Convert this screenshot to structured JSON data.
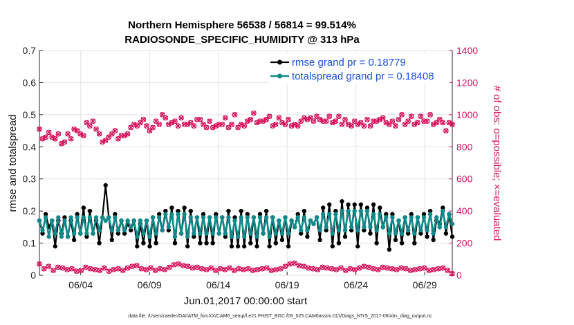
{
  "chart_data": {
    "type": "line",
    "title_line1": "Northern Hemisphere 56538 / 56814 = 99.514%",
    "title_line2": "RADIOSONDE_SPECIFIC_HUMIDITY @ 313 hPa",
    "xlabel": "Jun.01,2017 00:00:00 start",
    "ylabel": "rmse and totalspread",
    "y2label": "# of obs: o=possible; ×=evaluated",
    "footer": "data file: /Users/raeder/DAI/ATM_forcXX/CAM6_setup/f.e21.FHIST_BGC.f09_025.CAM6assim.011/Diags_NTrS_2017-06/obs_diag_output.nc",
    "xlim": [
      1.0,
      31.0
    ],
    "ylim": [
      0,
      0.7
    ],
    "y2lim": [
      0,
      1400
    ],
    "x_ticks": [
      4,
      9,
      14,
      19,
      24,
      29
    ],
    "x_tick_labels": [
      "06/04",
      "06/09",
      "06/14",
      "06/19",
      "06/24",
      "06/29"
    ],
    "y_ticks": [
      0,
      0.1,
      0.2,
      0.3,
      0.4,
      0.5,
      0.6,
      0.7
    ],
    "y_tick_labels": [
      "0",
      "0.1",
      "0.2",
      "0.3",
      "0.4",
      "0.5",
      "0.6",
      "0.7"
    ],
    "y2_ticks": [
      0,
      200,
      400,
      600,
      800,
      1000,
      1200,
      1400
    ],
    "y2_tick_labels": [
      "0",
      "200",
      "400",
      "600",
      "800",
      "1000",
      "1200",
      "1400"
    ],
    "colors": {
      "rmse": "#000000",
      "spread": "#0e8a8a",
      "obs": "#d6135c",
      "legend_text": "#1a4fe0"
    },
    "series": [
      {
        "name": "rmse grand pr = 0.18779",
        "axis": "left",
        "values": [
          0.17,
          0.13,
          0.19,
          0.15,
          0.17,
          0.09,
          0.17,
          0.13,
          0.18,
          0.12,
          0.17,
          0.11,
          0.19,
          0.13,
          0.21,
          0.12,
          0.2,
          0.13,
          0.17,
          0.1,
          0.18,
          0.28,
          0.18,
          0.11,
          0.19,
          0.13,
          0.17,
          0.13,
          0.16,
          0.14,
          0.17,
          0.09,
          0.16,
          0.1,
          0.17,
          0.09,
          0.18,
          0.1,
          0.19,
          0.14,
          0.2,
          0.14,
          0.21,
          0.1,
          0.2,
          0.13,
          0.21,
          0.09,
          0.2,
          0.12,
          0.18,
          0.1,
          0.19,
          0.1,
          0.18,
          0.1,
          0.19,
          0.13,
          0.18,
          0.12,
          0.2,
          0.09,
          0.18,
          0.09,
          0.2,
          0.09,
          0.19,
          0.1,
          0.18,
          0.09,
          0.19,
          0.13,
          0.2,
          0.09,
          0.18,
          0.1,
          0.17,
          0.11,
          0.18,
          0.09,
          0.17,
          0.15,
          0.19,
          0.13,
          0.2,
          0.12,
          0.17,
          0.16,
          0.18,
          0.11,
          0.21,
          0.14,
          0.22,
          0.09,
          0.2,
          0.1,
          0.23,
          0.12,
          0.22,
          0.14,
          0.22,
          0.09,
          0.22,
          0.14,
          0.21,
          0.13,
          0.22,
          0.1,
          0.21,
          0.15,
          0.19,
          0.08,
          0.19,
          0.11,
          0.17,
          0.1,
          0.18,
          0.13,
          0.19,
          0.1,
          0.18,
          0.13,
          0.19,
          0.12,
          0.2,
          0.11,
          0.17,
          0.16,
          0.21,
          0.13,
          0.19,
          0.12
        ]
      },
      {
        "name": "totalspread grand pr = 0.18408",
        "axis": "left",
        "values": [
          0.17,
          0.14,
          0.18,
          0.12,
          0.17,
          0.13,
          0.18,
          0.12,
          0.17,
          0.12,
          0.18,
          0.13,
          0.18,
          0.13,
          0.18,
          0.13,
          0.18,
          0.13,
          0.18,
          0.14,
          0.18,
          0.17,
          0.18,
          0.14,
          0.18,
          0.14,
          0.17,
          0.14,
          0.17,
          0.15,
          0.17,
          0.12,
          0.17,
          0.13,
          0.17,
          0.12,
          0.18,
          0.13,
          0.18,
          0.14,
          0.19,
          0.15,
          0.19,
          0.12,
          0.19,
          0.13,
          0.19,
          0.12,
          0.18,
          0.13,
          0.18,
          0.13,
          0.18,
          0.13,
          0.18,
          0.13,
          0.18,
          0.13,
          0.18,
          0.13,
          0.18,
          0.12,
          0.17,
          0.12,
          0.18,
          0.12,
          0.18,
          0.13,
          0.18,
          0.12,
          0.18,
          0.13,
          0.18,
          0.12,
          0.18,
          0.13,
          0.17,
          0.13,
          0.18,
          0.13,
          0.17,
          0.15,
          0.18,
          0.14,
          0.18,
          0.14,
          0.17,
          0.16,
          0.18,
          0.14,
          0.19,
          0.15,
          0.19,
          0.13,
          0.19,
          0.14,
          0.2,
          0.14,
          0.2,
          0.15,
          0.2,
          0.14,
          0.2,
          0.15,
          0.2,
          0.15,
          0.19,
          0.14,
          0.19,
          0.15,
          0.18,
          0.13,
          0.18,
          0.13,
          0.17,
          0.13,
          0.18,
          0.14,
          0.18,
          0.13,
          0.18,
          0.14,
          0.18,
          0.14,
          0.19,
          0.13,
          0.18,
          0.15,
          0.2,
          0.15,
          0.19,
          0.16
        ]
      },
      {
        "name": "obs possible",
        "axis": "right",
        "marker": "o",
        "values": [
          910,
          850,
          860,
          890,
          860,
          850,
          880,
          820,
          830,
          880,
          850,
          910,
          900,
          880,
          870,
          950,
          930,
          960,
          910,
          880,
          830,
          840,
          860,
          880,
          900,
          850,
          870,
          870,
          880,
          920,
          940,
          930,
          950,
          970,
          930,
          900,
          920,
          960,
          940,
          1000,
          980,
          940,
          950,
          960,
          930,
          980,
          940,
          940,
          950,
          930,
          970,
          970,
          940,
          920,
          960,
          920,
          930,
          940,
          940,
          980,
          920,
          940,
          1000,
          920,
          940,
          930,
          960,
          970,
          1010,
          950,
          960,
          960,
          970,
          990,
          930,
          940,
          980,
          950,
          940,
          970,
          930,
          940,
          930,
          960,
          980,
          970,
          980,
          960,
          990,
          970,
          960,
          960,
          990,
          950,
          960,
          990,
          940,
          970,
          940,
          930,
          960,
          940,
          950,
          930,
          970,
          930,
          960,
          960,
          970,
          980,
          950,
          940,
          960,
          930,
          970,
          1000,
          940,
          960,
          990,
          940,
          950,
          990,
          960,
          960,
          1000,
          940,
          950,
          970,
          950,
          900,
          950,
          940
        ]
      }
    ],
    "legend": [
      "rmse grand pr = 0.18779",
      "totalspread grand pr = 0.18408"
    ],
    "legend_position": "top-right"
  }
}
